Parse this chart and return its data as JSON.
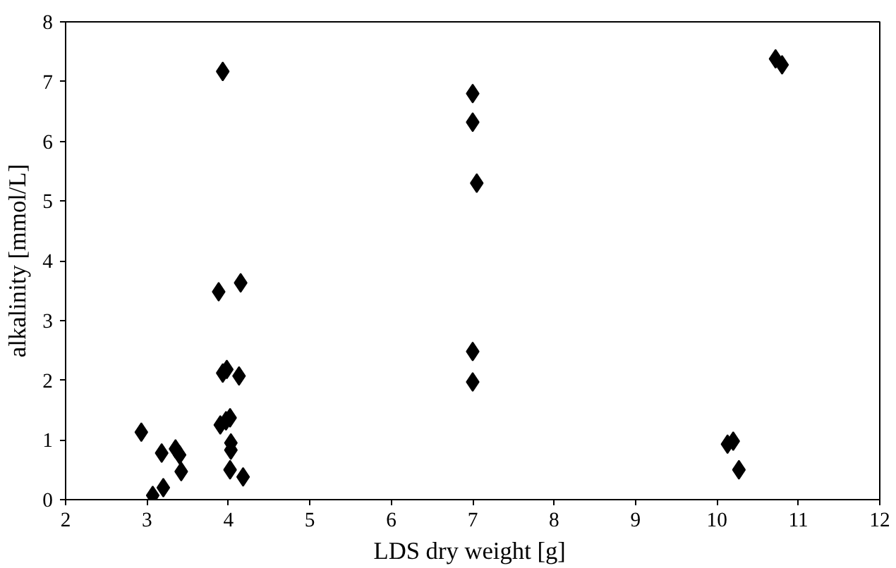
{
  "chart_data": {
    "type": "scatter",
    "xlabel": "LDS dry weight  [g]",
    "ylabel": "alkalinity [mmol/L]",
    "x": [
      2.93,
      3.07,
      3.2,
      3.18,
      3.35,
      3.4,
      3.42,
      3.88,
      3.93,
      3.9,
      3.97,
      4.02,
      4.03,
      4.03,
      4.02,
      4.18,
      3.93,
      3.98,
      4.13,
      4.15,
      7.0,
      7.0,
      7.05,
      7.0,
      7.0,
      10.13,
      10.2,
      10.27,
      10.72,
      10.8
    ],
    "series": [
      {
        "color": "#000000",
        "values": [
          1.13,
          0.07,
          0.2,
          0.78,
          0.85,
          0.75,
          0.47,
          3.48,
          7.17,
          1.25,
          1.32,
          1.37,
          0.95,
          0.83,
          0.5,
          0.38,
          2.12,
          2.18,
          2.07,
          3.63,
          6.8,
          6.32,
          5.3,
          2.48,
          1.97,
          0.93,
          0.98,
          0.5,
          7.38,
          7.28
        ]
      }
    ],
    "xlim": [
      2,
      12
    ],
    "ylim": [
      0,
      8
    ],
    "xticks": [
      2,
      3,
      4,
      5,
      6,
      7,
      8,
      9,
      10,
      11,
      12
    ],
    "yticks": [
      0,
      1,
      2,
      3,
      4,
      5,
      6,
      7,
      8
    ],
    "marker": "diamond",
    "grid": false
  }
}
